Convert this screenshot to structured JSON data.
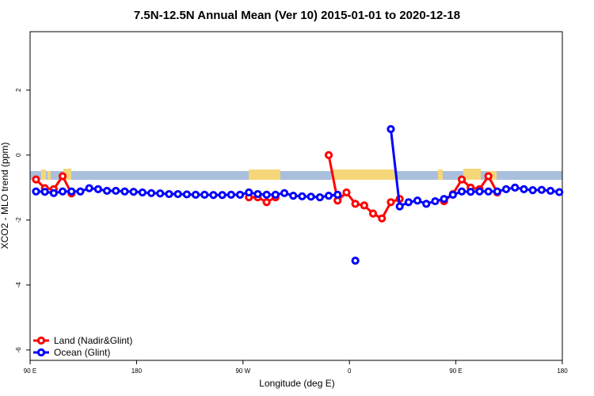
{
  "chart_data": {
    "type": "line",
    "title": "7.5N-12.5N Annual Mean (Ver 10)   2015-01-01 to 2020-12-18",
    "xlabel": "Longitude (deg E)",
    "ylabel": "XCO2 - MLO trend (ppm)",
    "xlim": [
      90,
      540
    ],
    "ylim": [
      -6.32,
      3.8
    ],
    "xticks": [
      {
        "value": 90,
        "label": "90 E"
      },
      {
        "value": 180,
        "label": "180"
      },
      {
        "value": 270,
        "label": "90 W"
      },
      {
        "value": 360,
        "label": "0"
      },
      {
        "value": 450,
        "label": "90 E"
      },
      {
        "value": 540,
        "label": "180"
      }
    ],
    "yticks": [
      -6,
      -4,
      -2,
      0,
      2
    ],
    "legend": "bottom-left",
    "x": [
      95,
      102.5,
      110,
      117.5,
      125,
      132.5,
      140,
      147.5,
      155,
      162.5,
      170,
      177.5,
      185,
      192.5,
      200,
      207.5,
      215,
      222.5,
      230,
      237.5,
      245,
      252.5,
      260,
      267.5,
      275,
      282.5,
      290,
      297.5,
      305,
      312.5,
      320,
      327.5,
      335,
      342.5,
      350,
      357.5,
      365,
      372.5,
      380,
      387.5,
      395,
      402.5,
      410,
      417.5,
      425,
      432.5,
      440,
      447.5,
      455,
      462.5,
      470,
      477.5,
      485,
      492.5,
      500,
      507.5,
      515,
      522.5,
      530,
      537.5
    ],
    "series": [
      {
        "name": "Land (Nadir&Glint)",
        "color": "#ff0000",
        "values": [
          -0.75,
          -1.02,
          -1.05,
          -0.65,
          -1.18,
          null,
          null,
          null,
          null,
          null,
          null,
          null,
          null,
          null,
          null,
          null,
          null,
          null,
          null,
          null,
          null,
          null,
          null,
          null,
          -1.3,
          -1.3,
          -1.45,
          -1.3,
          null,
          null,
          null,
          null,
          null,
          0,
          -1.4,
          -1.15,
          -1.5,
          -1.55,
          -1.8,
          -1.95,
          -1.45,
          -1.35,
          null,
          null,
          null,
          null,
          -1.42,
          -1.2,
          -0.75,
          -1.0,
          -1.05,
          -0.65,
          -1.15,
          null,
          null,
          null,
          null,
          null,
          null,
          null
        ]
      },
      {
        "name": "Ocean (Glint)",
        "color": "#0000ff",
        "values": [
          -1.12,
          -1.13,
          -1.17,
          -1.12,
          -1.12,
          -1.12,
          -1.02,
          -1.05,
          -1.1,
          -1.1,
          -1.12,
          -1.13,
          -1.15,
          -1.17,
          -1.18,
          -1.2,
          -1.2,
          -1.21,
          -1.22,
          -1.22,
          -1.23,
          -1.23,
          -1.22,
          -1.22,
          -1.15,
          -1.2,
          -1.22,
          -1.22,
          -1.17,
          -1.25,
          -1.27,
          -1.28,
          -1.3,
          -1.25,
          -1.22,
          null,
          -3.25,
          null,
          null,
          null,
          0.8,
          -1.58,
          -1.45,
          -1.4,
          -1.5,
          -1.42,
          -1.35,
          -1.22,
          -1.12,
          -1.13,
          -1.12,
          -1.12,
          -1.12,
          -1.05,
          -1.0,
          -1.05,
          -1.08,
          -1.07,
          -1.1,
          -1.14
        ]
      }
    ]
  }
}
